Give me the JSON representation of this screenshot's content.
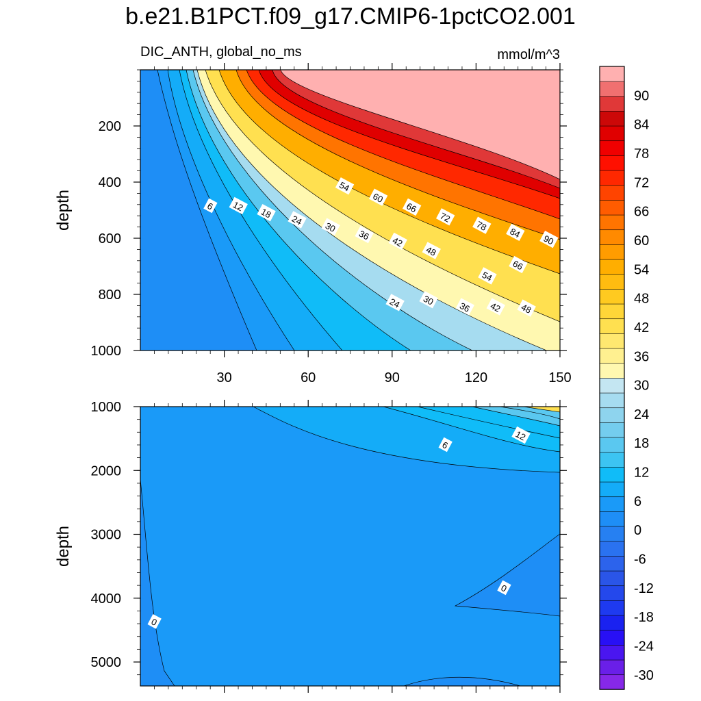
{
  "chart_data": {
    "type": "contour",
    "title": "b.e21.B1PCT.f09_g17.CMIP6-1pctCO2.001",
    "variable_label": "DIC_ANTH, global_no_ms",
    "units_label": "mmol/m^3",
    "x_axis": {
      "range": [
        0,
        150
      ],
      "ticks": [
        "30",
        "60",
        "90",
        "120",
        "150"
      ],
      "tick_values": [
        30,
        60,
        90,
        120,
        150
      ]
    },
    "panels": [
      {
        "name": "upper",
        "ylabel": "depth",
        "ylim": [
          0,
          1000
        ],
        "y_ticks": [
          "200",
          "400",
          "600",
          "800",
          "1000"
        ],
        "y_tick_values": [
          200,
          400,
          600,
          800,
          1000
        ],
        "contour_labels": [
          {
            "text": "6",
            "x": 25,
            "y": 485
          },
          {
            "text": "12",
            "x": 35,
            "y": 485
          },
          {
            "text": "18",
            "x": 45,
            "y": 510
          },
          {
            "text": "24",
            "x": 56,
            "y": 535
          },
          {
            "text": "30",
            "x": 68,
            "y": 560
          },
          {
            "text": "36",
            "x": 80,
            "y": 588
          },
          {
            "text": "42",
            "x": 92,
            "y": 612
          },
          {
            "text": "48",
            "x": 104,
            "y": 645
          },
          {
            "text": "54",
            "x": 73,
            "y": 415
          },
          {
            "text": "60",
            "x": 85,
            "y": 455
          },
          {
            "text": "66",
            "x": 97,
            "y": 490
          },
          {
            "text": "72",
            "x": 109,
            "y": 525
          },
          {
            "text": "78",
            "x": 122,
            "y": 555
          },
          {
            "text": "84",
            "x": 134,
            "y": 580
          },
          {
            "text": "90",
            "x": 146,
            "y": 605
          },
          {
            "text": "54",
            "x": 124,
            "y": 735
          },
          {
            "text": "66",
            "x": 135,
            "y": 695
          },
          {
            "text": "24",
            "x": 91,
            "y": 830
          },
          {
            "text": "30",
            "x": 103,
            "y": 820
          },
          {
            "text": "36",
            "x": 116,
            "y": 845
          },
          {
            "text": "42",
            "x": 127,
            "y": 845
          },
          {
            "text": "48",
            "x": 138,
            "y": 850
          }
        ]
      },
      {
        "name": "lower",
        "ylabel": "depth",
        "ylim": [
          1000,
          5375
        ],
        "y_ticks": [
          "1000",
          "2000",
          "3000",
          "4000",
          "5000"
        ],
        "y_tick_values": [
          1000,
          2000,
          3000,
          4000,
          5000
        ],
        "contour_labels": [
          {
            "text": "6",
            "x": 109,
            "y": 1600
          },
          {
            "text": "12",
            "x": 136,
            "y": 1450
          },
          {
            "text": "0",
            "x": 130,
            "y": 3840
          },
          {
            "text": "0",
            "x": 5,
            "y": 4370
          }
        ]
      }
    ],
    "colorbar": {
      "levels": [
        -33,
        -30,
        -27,
        -24,
        -21,
        -18,
        -15,
        -12,
        -9,
        -6,
        -3,
        0,
        3,
        6,
        9,
        12,
        15,
        18,
        21,
        24,
        27,
        30,
        33,
        36,
        39,
        42,
        45,
        48,
        51,
        54,
        57,
        60,
        63,
        66,
        69,
        72,
        75,
        78,
        81,
        84,
        87,
        90,
        93,
        96
      ],
      "labels": [
        "-30",
        "-24",
        "-18",
        "-12",
        "-6",
        "0",
        "6",
        "12",
        "18",
        "24",
        "30",
        "36",
        "42",
        "48",
        "54",
        "60",
        "66",
        "72",
        "78",
        "84",
        "90"
      ],
      "label_values": [
        -30,
        -24,
        -18,
        -12,
        -6,
        0,
        6,
        12,
        18,
        24,
        30,
        36,
        42,
        48,
        54,
        60,
        66,
        72,
        78,
        84,
        90
      ],
      "colors": [
        "#8628e8",
        "#6a1fe8",
        "#4a16f0",
        "#2810f5",
        "#1a22f0",
        "#1e3af0",
        "#2448ec",
        "#2a55e8",
        "#2c63ec",
        "#2a72f0",
        "#2680f2",
        "#1e8ef6",
        "#1a9af8",
        "#14acf8",
        "#10bcf8",
        "#3cc4f2",
        "#5ac8f0",
        "#74cdee",
        "#8ed4ee",
        "#a6dcf0",
        "#c4e6f2",
        "#fff8b0",
        "#fff090",
        "#ffe870",
        "#ffe050",
        "#ffd638",
        "#ffca20",
        "#ffbc10",
        "#ffae00",
        "#ff9c00",
        "#ff8a00",
        "#ff7400",
        "#ff5c00",
        "#ff4400",
        "#ff2800",
        "#ff1000",
        "#f00000",
        "#e00000",
        "#cc0808",
        "#e03838",
        "#f07070",
        "#ffb0b0"
      ]
    }
  }
}
